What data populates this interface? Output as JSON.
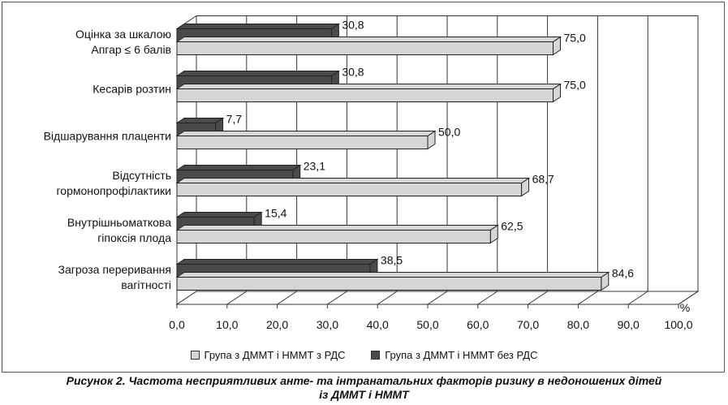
{
  "chart_data": {
    "type": "bar",
    "orientation": "horizontal",
    "categories": [
      [
        "Оцінка за шкалою",
        "Апгар ≤ 6 балів"
      ],
      [
        "Кесарів розтин"
      ],
      [
        "Відшарування плаценти"
      ],
      [
        "Відсутність",
        "гормонопрофілактики"
      ],
      [
        "Внутрішньоматкова",
        "гіпоксія плода"
      ],
      [
        "Загроза переривання",
        "вагітності"
      ]
    ],
    "series": [
      {
        "name": "Група з ДММТ і НММТ без РДС",
        "values": [
          30.8,
          30.8,
          7.7,
          23.1,
          15.4,
          38.5
        ],
        "labels": [
          "30,8",
          "30,8",
          "7,7",
          "23,1",
          "15,4",
          "38,5"
        ],
        "color": "#4a4a4a"
      },
      {
        "name": "Група з ДММТ і НММТ з РДС",
        "values": [
          75.0,
          75.0,
          50.0,
          68.7,
          62.5,
          84.6
        ],
        "labels": [
          "75,0",
          "75,0",
          "50,0",
          "68,7",
          "62,5",
          "84,6"
        ],
        "color": "#d6d6d6"
      }
    ],
    "x_ticks": [
      "0,0",
      "10,0",
      "20,0",
      "30,0",
      "40,0",
      "50,0",
      "60,0",
      "70,0",
      "80,0",
      "90,0",
      "100,0"
    ],
    "xlim": [
      0,
      100
    ],
    "x_unit": "%",
    "grid": true,
    "legend_position": "bottom",
    "legend": [
      {
        "name": "Група з ДММТ і НММТ з РДС",
        "color": "#d6d6d6"
      },
      {
        "name": "Група з ДММТ і НММТ без РДС",
        "color": "#4a4a4a"
      }
    ]
  },
  "caption": {
    "line1": "Рисунок 2. Частота несприятливих анте- та інтранатальних факторів ризику в недоношених дітей",
    "line2": "із ДММТ і НММТ"
  }
}
